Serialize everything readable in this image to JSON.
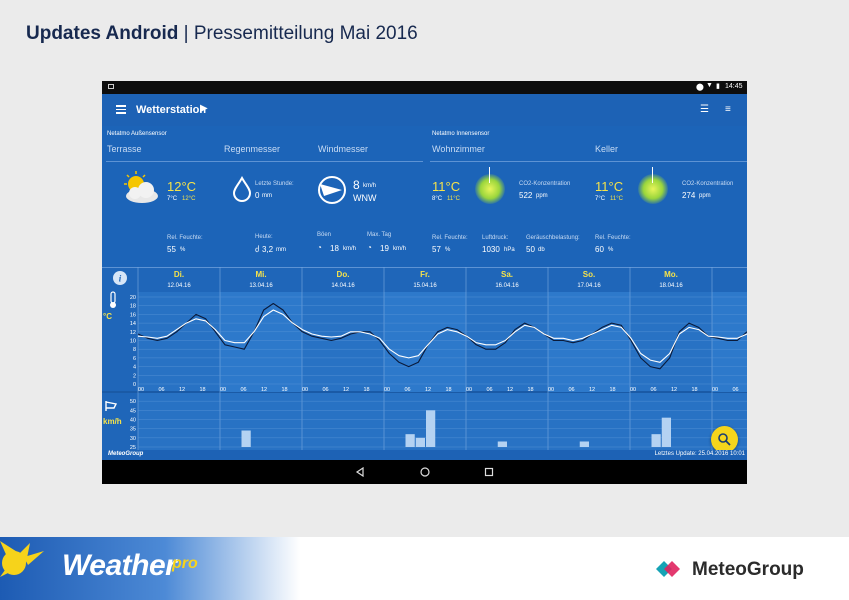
{
  "slide": {
    "title_bold": "Updates Android",
    "separator": "|",
    "title_rest": "Pressemitteilung Mai 2016",
    "brand_left": "Weather",
    "brand_left_pro": "pro",
    "brand_right": "MeteoGroup"
  },
  "statusbar": {
    "time": "14:45"
  },
  "appbar": {
    "title": "Wetterstation"
  },
  "sensors": {
    "outdoor_group": "Netatmo Außensensor",
    "indoor_group": "Netatmo Innensensor",
    "terrasse": {
      "name": "Terrasse",
      "temp": "12°C",
      "min": "7°C",
      "max": "12°C",
      "hum_label": "Rel. Feuchte:",
      "hum_value": "55",
      "hum_unit": "%"
    },
    "rain": {
      "name": "Regenmesser",
      "hour_label": "Letzte Stunde:",
      "hour_value": "0",
      "hour_unit": "mm",
      "today_label": "Heute:",
      "today_value": "3,2",
      "today_unit": "mm"
    },
    "wind": {
      "name": "Windmesser",
      "speed": "8",
      "speed_unit": "km/h",
      "dir": "WNW",
      "gust_label": "Böen",
      "gust_value": "18",
      "gust_unit": "km/h",
      "max_label": "Max. Tag",
      "max_value": "19",
      "max_unit": "km/h"
    },
    "wohnzimmer": {
      "name": "Wohnzimmer",
      "temp": "11°C",
      "min": "8°C",
      "max": "11°C",
      "co2_label": "CO2-Konzentration",
      "co2_value": "522",
      "co2_unit": "ppm",
      "hum_label": "Rel. Feuchte:",
      "hum_value": "57",
      "hum_unit": "%",
      "press_label": "Luftdruck:",
      "press_value": "1030",
      "press_unit": "hPa",
      "noise_label": "Geräuschbelastung:",
      "noise_value": "50",
      "noise_unit": "db"
    },
    "keller": {
      "name": "Keller",
      "temp": "11°C",
      "min": "7°C",
      "max": "11°C",
      "co2_label": "CO2-Konzentration",
      "co2_value": "274",
      "co2_unit": "ppm",
      "hum_label": "Rel. Feuchte:",
      "hum_value": "60",
      "hum_unit": "%"
    }
  },
  "chart_data": {
    "type": "line",
    "days": [
      {
        "day": "Di.",
        "date": "12.04.16"
      },
      {
        "day": "Mi.",
        "date": "13.04.16"
      },
      {
        "day": "Do.",
        "date": "14.04.16"
      },
      {
        "day": "Fr.",
        "date": "15.04.16"
      },
      {
        "day": "Sa.",
        "date": "16.04.16"
      },
      {
        "day": "So.",
        "date": "17.04.16"
      },
      {
        "day": "Mo.",
        "date": "18.04.16"
      },
      {
        "day": "",
        "date": "19"
      }
    ],
    "hour_ticks": [
      "00",
      "06",
      "12",
      "18"
    ],
    "temp_unit": "°C",
    "temp_ylim": [
      0,
      20
    ],
    "temp_ticks": [
      "20",
      "18",
      "16",
      "14",
      "12",
      "10",
      "8",
      "6",
      "4",
      "2",
      "0"
    ],
    "series": [
      {
        "name": "measured",
        "color": "#0a1a3a",
        "values": [
          11.5,
          10.5,
          10,
          10.5,
          12,
          14,
          16,
          15,
          12,
          9,
          8.5,
          8,
          12,
          17,
          18.5,
          17,
          14,
          12,
          11,
          10.5,
          10,
          10.5,
          11.5,
          12,
          12,
          10,
          7,
          5,
          4,
          5,
          9,
          12,
          13,
          12.5,
          11,
          9,
          8,
          8,
          9.5,
          12.5,
          14,
          13,
          11.5,
          10,
          10,
          9.5,
          10,
          11.5,
          13,
          14,
          13.5,
          10,
          6,
          4,
          3.5,
          6,
          12,
          14,
          13,
          11,
          10.5,
          10,
          10,
          12
        ]
      },
      {
        "name": "forecast",
        "color": "#ffffff",
        "values": [
          11,
          10.8,
          10.5,
          11,
          12.5,
          14,
          15,
          14.5,
          12.5,
          10,
          9.5,
          9.5,
          12,
          15.5,
          17,
          16,
          14,
          12.5,
          11.5,
          11,
          10.8,
          11,
          12,
          12,
          11.5,
          10.5,
          8,
          6.5,
          6,
          6.5,
          9,
          11.5,
          12.5,
          12,
          11,
          9.5,
          9,
          9,
          10,
          12,
          13.5,
          13,
          11.5,
          10.5,
          10.5,
          10,
          10.5,
          11.5,
          12.5,
          13.5,
          13,
          10.5,
          7,
          5.5,
          5,
          7,
          11.5,
          13,
          12.5,
          11,
          10.8,
          10.5,
          10.5,
          11.5
        ]
      }
    ],
    "wind_unit": "km/h",
    "wind_ylim": [
      25,
      55
    ],
    "wind_ticks": [
      "50",
      "45",
      "40",
      "35",
      "30",
      "25"
    ],
    "wind_bars": [
      {
        "day": 1,
        "slot": 2,
        "value": 34
      },
      {
        "day": 3,
        "slot": 2,
        "value": 32
      },
      {
        "day": 3,
        "slot": 3,
        "value": 30
      },
      {
        "day": 3,
        "slot": 4,
        "value": 45
      },
      {
        "day": 4,
        "slot": 3,
        "value": 28
      },
      {
        "day": 5,
        "slot": 3,
        "value": 28
      },
      {
        "day": 6,
        "slot": 2,
        "value": 32
      },
      {
        "day": 6,
        "slot": 3,
        "value": 41
      }
    ]
  },
  "footer": {
    "brand": "MeteoGroup",
    "last_update": "Letztes Update: 25.04.2016 10:01"
  },
  "colors": {
    "app_blue": "#1c64b8",
    "chart_blue": "#2872c4",
    "yellow": "#f6e34a",
    "fab": "#f5d51c"
  }
}
